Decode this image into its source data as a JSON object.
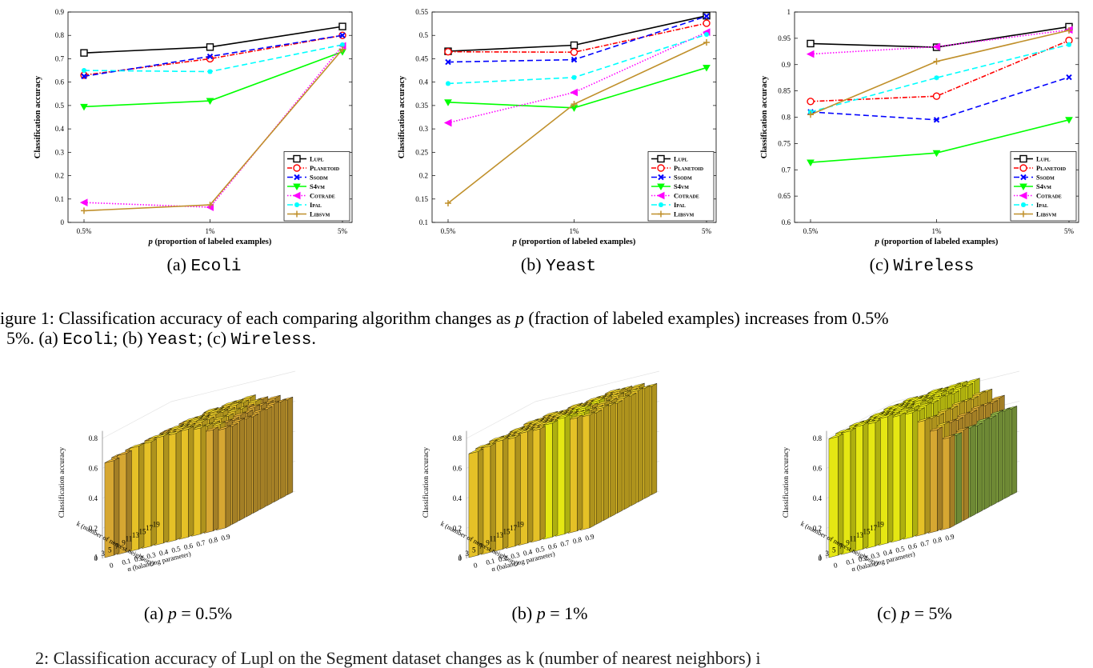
{
  "line_charts": [
    {
      "id": "ecoli",
      "caption_label": "(a)",
      "caption_dataset": "Ecoli",
      "xlabel_var": "p",
      "xlabel_rest": " (proportion of labeled examples)",
      "ylabel": "Classification accuracy",
      "ylim": [
        0,
        0.9
      ],
      "yticks": [
        "0",
        "0.1",
        "0.2",
        "0.3",
        "0.4",
        "0.5",
        "0.6",
        "0.7",
        "0.8",
        "0.9"
      ],
      "xticks": [
        "0.5%",
        "1%",
        "5%"
      ]
    },
    {
      "id": "yeast",
      "caption_label": "(b)",
      "caption_dataset": "Yeast",
      "xlabel_var": "p",
      "xlabel_rest": " (proportion of labeled examples)",
      "ylabel": "Classification accuracy",
      "ylim": [
        0.1,
        0.55
      ],
      "yticks": [
        "0.1",
        "0.15",
        "0.2",
        "0.25",
        "0.3",
        "0.35",
        "0.4",
        "0.45",
        "0.5",
        "0.55"
      ],
      "xticks": [
        "0.5%",
        "1%",
        "5%"
      ]
    },
    {
      "id": "wireless",
      "caption_label": "(c)",
      "caption_dataset": "Wireless",
      "xlabel_var": "p",
      "xlabel_rest": " (proportion of labeled examples)",
      "ylabel": "Classification accuracy",
      "ylim": [
        0.6,
        1.0
      ],
      "yticks": [
        "0.6",
        "0.65",
        "0.7",
        "0.75",
        "0.8",
        "0.85",
        "0.9",
        "0.95",
        "1"
      ],
      "xticks": [
        "0.5%",
        "1%",
        "5%"
      ]
    }
  ],
  "chart_data": [
    {
      "type": "line",
      "title": "",
      "xlabel": "p (proportion of labeled examples)",
      "ylabel": "Classification accuracy",
      "categories": [
        "0.5%",
        "1%",
        "5%"
      ],
      "ylim": [
        0,
        0.9
      ],
      "legend": "bottom-right",
      "series": [
        {
          "name": "Lupl",
          "values": [
            0.725,
            0.75,
            0.838
          ]
        },
        {
          "name": "Planetoid",
          "values": [
            0.63,
            0.7,
            0.8
          ]
        },
        {
          "name": "Ssodm",
          "values": [
            0.625,
            0.71,
            0.8
          ]
        },
        {
          "name": "S4vm",
          "values": [
            0.495,
            0.52,
            0.73
          ]
        },
        {
          "name": "Cotrade",
          "values": [
            0.085,
            0.065,
            0.755
          ]
        },
        {
          "name": "Ipal",
          "values": [
            0.65,
            0.645,
            0.76
          ]
        },
        {
          "name": "Libsvm",
          "values": [
            0.05,
            0.075,
            0.74
          ]
        }
      ]
    },
    {
      "type": "line",
      "title": "",
      "xlabel": "p (proportion of labeled examples)",
      "ylabel": "Classification accuracy",
      "categories": [
        "0.5%",
        "1%",
        "5%"
      ],
      "ylim": [
        0.1,
        0.55
      ],
      "legend": "bottom-right",
      "series": [
        {
          "name": "Lupl",
          "values": [
            0.466,
            0.479,
            0.542
          ]
        },
        {
          "name": "Planetoid",
          "values": [
            0.465,
            0.464,
            0.526
          ]
        },
        {
          "name": "Ssodm",
          "values": [
            0.443,
            0.448,
            0.541
          ]
        },
        {
          "name": "S4vm",
          "values": [
            0.357,
            0.345,
            0.431
          ]
        },
        {
          "name": "Cotrade",
          "values": [
            0.313,
            0.378,
            0.507
          ]
        },
        {
          "name": "Ipal",
          "values": [
            0.397,
            0.41,
            0.502
          ]
        },
        {
          "name": "Libsvm",
          "values": [
            0.141,
            0.353,
            0.485
          ]
        }
      ]
    },
    {
      "type": "line",
      "title": "",
      "xlabel": "p (proportion of labeled examples)",
      "ylabel": "Classification accuracy",
      "categories": [
        "0.5%",
        "1%",
        "5%"
      ],
      "ylim": [
        0.6,
        1.0
      ],
      "legend": "bottom-right",
      "series": [
        {
          "name": "Lupl",
          "values": [
            0.94,
            0.933,
            0.972
          ]
        },
        {
          "name": "Planetoid",
          "values": [
            0.83,
            0.84,
            0.946
          ]
        },
        {
          "name": "Ssodm",
          "values": [
            0.81,
            0.795,
            0.876
          ]
        },
        {
          "name": "S4vm",
          "values": [
            0.714,
            0.732,
            0.795
          ]
        },
        {
          "name": "Cotrade",
          "values": [
            0.92,
            0.934,
            0.966
          ]
        },
        {
          "name": "Ipal",
          "values": [
            0.81,
            0.875,
            0.938
          ]
        },
        {
          "name": "Libsvm",
          "values": [
            0.805,
            0.906,
            0.965
          ]
        }
      ]
    },
    {
      "type": "bar",
      "title": "",
      "xlabel": "k (number of nearest neighbors)",
      "ylabel": "Classification accuracy",
      "zlim": [
        0,
        0.8
      ],
      "k_ticks": [
        "1",
        "3",
        "5",
        "7",
        "9",
        "11",
        "13",
        "15",
        "17",
        "19"
      ],
      "alpha_ticks": [
        "0",
        "0.1",
        "0.2",
        "0.3",
        "0.4",
        "0.5",
        "0.6",
        "0.7",
        "0.8",
        "0.9"
      ],
      "alpha_label": "α (balancing parameter)",
      "alpha_values": [
        0.64,
        0.66,
        0.68,
        0.7,
        0.71,
        0.72,
        0.72,
        0.7,
        0.68,
        0.66
      ]
    },
    {
      "type": "bar",
      "title": "",
      "xlabel": "k (number of nearest neighbors)",
      "ylabel": "Classification accuracy",
      "zlim": [
        0,
        0.8
      ],
      "k_ticks": [
        "1",
        "3",
        "5",
        "7",
        "9",
        "11",
        "13",
        "15",
        "17",
        "19"
      ],
      "alpha_ticks": [
        "0",
        "0.1",
        "0.2",
        "0.3",
        "0.4",
        "0.5",
        "0.6",
        "0.7",
        "0.8",
        "0.9"
      ],
      "alpha_label": "α (balancing parameter)",
      "alpha_values": [
        0.7,
        0.71,
        0.72,
        0.73,
        0.74,
        0.75,
        0.76,
        0.77,
        0.76,
        0.75
      ]
    },
    {
      "type": "bar",
      "title": "",
      "xlabel": "k (number of nearest neighbors)",
      "ylabel": "Classification accuracy",
      "zlim": [
        0,
        0.8
      ],
      "k_ticks": [
        "1",
        "3",
        "5",
        "7",
        "9",
        "11",
        "13",
        "15",
        "17",
        "19"
      ],
      "alpha_ticks": [
        "0",
        "0.1",
        "0.2",
        "0.3",
        "0.4",
        "0.5",
        "0.6",
        "0.7",
        "0.8",
        "0.9"
      ],
      "alpha_label": "α (balancing parameter)",
      "alpha_values": [
        0.8,
        0.81,
        0.82,
        0.83,
        0.84,
        0.84,
        0.83,
        0.75,
        0.68,
        0.6
      ]
    }
  ],
  "legend_style": {
    "Lupl": {
      "color": "#000000",
      "marker": "square",
      "dash": ""
    },
    "Planetoid": {
      "color": "#ff0000",
      "marker": "circle",
      "dash": "6,2,1.5,2"
    },
    "Ssodm": {
      "color": "#0000ff",
      "marker": "x",
      "dash": "7,4"
    },
    "S4vm": {
      "color": "#00ff00",
      "marker": "triangle-down",
      "dash": ""
    },
    "Cotrade": {
      "color": "#ff00ff",
      "marker": "triangle-left",
      "dash": "1.5,2"
    },
    "Ipal": {
      "color": "#00ffff",
      "marker": "asterisk",
      "dash": "7,4"
    },
    "Libsvm": {
      "color": "#c0902b",
      "marker": "plus",
      "dash": ""
    }
  },
  "fig1_caption": {
    "line1_pre": "igure 1: Classification accuracy of each comparing algorithm changes as ",
    "line1_var": "p",
    "line1_post": " (fraction of labeled examples) increases from 0.5%",
    "line2_pre": "5%. (a) ",
    "line2_ds1": "Ecoli",
    "line2_sep1": "; (b) ",
    "line2_ds2": "Yeast",
    "line2_sep2": "; (c) ",
    "line2_ds3": "Wireless",
    "line2_end": "."
  },
  "bar_captions": [
    {
      "label": "(a)",
      "var": "p",
      "eq": " = 0.5%"
    },
    {
      "label": "(b)",
      "var": "p",
      "eq": " = 1%"
    },
    {
      "label": "(c)",
      "var": "p",
      "eq": " = 5%"
    }
  ],
  "fig2_caption_partial": "2: Classification accuracy of Lupl on the Segment dataset changes as k (number of nearest neighbors) i",
  "colormap": [
    "#3e26a8",
    "#4743e6",
    "#3f63fb",
    "#2c84f2",
    "#1ea3db",
    "#17b9bf",
    "#4ac38f",
    "#9dc34b",
    "#e9b536",
    "#f9d22a",
    "#f9fb15"
  ]
}
